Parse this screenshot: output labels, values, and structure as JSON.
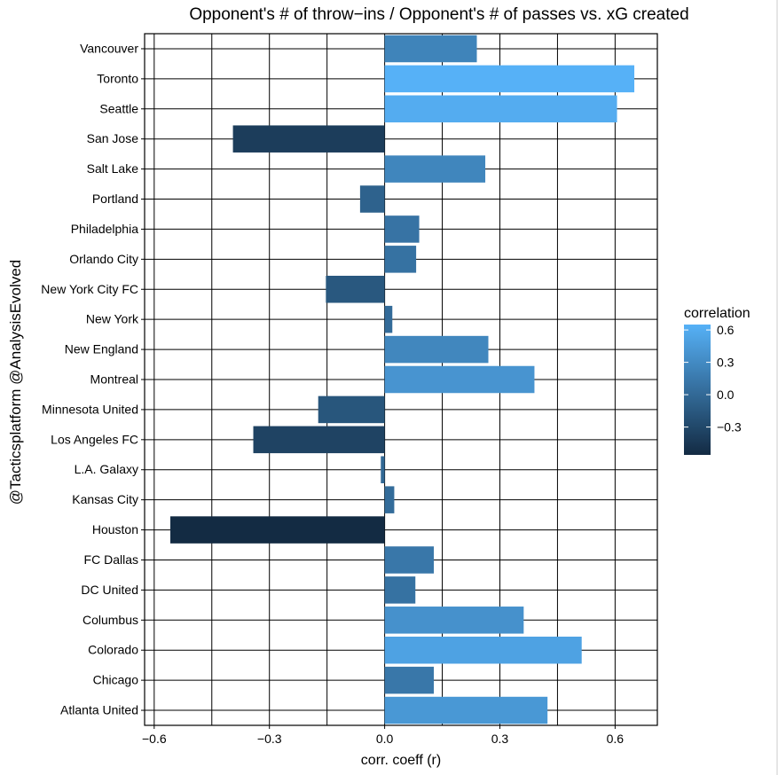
{
  "chart_data": {
    "type": "bar",
    "orientation": "horizontal",
    "title": "Opponent's # of throw−ins / Opponent's # of passes vs. xG created",
    "xlabel": "corr. coeff (r)",
    "ylabel": "@Tacticsplatform @AnalysisEvolved",
    "xlim": [
      -0.625,
      0.71
    ],
    "x_ticks": [
      -0.6,
      -0.3,
      0.0,
      0.3,
      0.6
    ],
    "x_tick_labels": [
      "−0.6",
      "−0.3",
      "0.0",
      "0.3",
      "0.6"
    ],
    "grid": true,
    "categories": [
      "Vancouver",
      "Toronto",
      "Seattle",
      "San Jose",
      "Salt Lake",
      "Portland",
      "Philadelphia",
      "Orlando City",
      "New York City FC",
      "New York",
      "New England",
      "Montreal",
      "Minnesota United",
      "Los Angeles FC",
      "L.A. Galaxy",
      "Kansas City",
      "Houston",
      "FC Dallas",
      "DC United",
      "Columbus",
      "Colorado",
      "Chicago",
      "Atlanta United"
    ],
    "values": [
      0.24,
      0.65,
      0.605,
      -0.395,
      0.262,
      -0.064,
      0.09,
      0.082,
      -0.153,
      0.02,
      0.27,
      0.39,
      -0.173,
      -0.342,
      -0.01,
      0.025,
      -0.558,
      0.128,
      0.08,
      0.362,
      0.513,
      0.128,
      0.424
    ],
    "legend": {
      "title": "correlation",
      "position": "right",
      "range": [
        -0.558,
        0.65
      ],
      "ticks": [
        0.6,
        0.3,
        0.0,
        -0.3
      ],
      "tick_labels": [
        "0.6",
        "0.3",
        "0.0",
        "−0.3"
      ],
      "color_low": "#132B43",
      "color_high": "#56B1F7"
    }
  }
}
